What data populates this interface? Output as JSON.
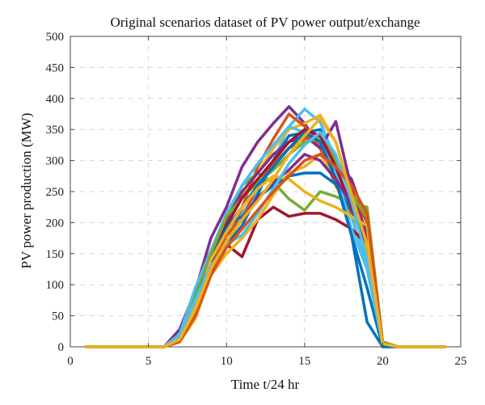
{
  "chart_data": {
    "type": "line",
    "title": "Original scenarios dataset of PV power output/exchange",
    "xlabel": "Time t/24 hr",
    "ylabel": "PV power production (MW)",
    "xlim": [
      0,
      25
    ],
    "ylim": [
      0,
      500
    ],
    "x_ticks": [
      0,
      5,
      10,
      15,
      20,
      25
    ],
    "y_ticks": [
      0,
      50,
      100,
      150,
      200,
      250,
      300,
      350,
      400,
      450,
      500
    ],
    "grid": true,
    "legend": "none",
    "x": [
      1,
      2,
      3,
      4,
      5,
      6,
      7,
      8,
      9,
      10,
      11,
      12,
      13,
      14,
      15,
      16,
      17,
      18,
      19,
      20,
      21,
      22,
      23,
      24
    ],
    "series": [
      {
        "color": "#7e2f8e",
        "values": [
          0,
          0,
          0,
          0,
          0,
          0,
          28,
          90,
          175,
          225,
          290,
          330,
          360,
          387,
          360,
          320,
          300,
          270,
          200,
          5,
          0,
          0,
          0,
          0
        ]
      },
      {
        "color": "#4dbeee",
        "values": [
          0,
          0,
          0,
          0,
          0,
          0,
          20,
          80,
          140,
          180,
          215,
          250,
          300,
          355,
          383,
          362,
          300,
          210,
          130,
          5,
          0,
          0,
          0,
          0
        ]
      },
      {
        "color": "#edb120",
        "values": [
          0,
          0,
          0,
          0,
          0,
          0,
          10,
          60,
          130,
          195,
          245,
          280,
          320,
          350,
          360,
          373,
          330,
          245,
          150,
          8,
          0,
          0,
          0,
          0
        ]
      },
      {
        "color": "#0072bd",
        "values": [
          0,
          0,
          0,
          0,
          0,
          0,
          18,
          85,
          140,
          165,
          195,
          245,
          300,
          340,
          345,
          350,
          268,
          180,
          95,
          0,
          0,
          0,
          0,
          0
        ]
      },
      {
        "color": "#d95319",
        "values": [
          0,
          0,
          0,
          0,
          0,
          0,
          12,
          55,
          125,
          165,
          225,
          290,
          335,
          375,
          355,
          320,
          260,
          215,
          170,
          5,
          0,
          0,
          0,
          0
        ]
      },
      {
        "color": "#77ac30",
        "values": [
          0,
          0,
          0,
          0,
          0,
          0,
          15,
          70,
          150,
          205,
          260,
          280,
          265,
          238,
          220,
          250,
          242,
          230,
          225,
          8,
          0,
          0,
          0,
          0
        ]
      },
      {
        "color": "#a2142f",
        "values": [
          0,
          0,
          0,
          0,
          0,
          0,
          10,
          50,
          120,
          165,
          145,
          205,
          225,
          210,
          215,
          215,
          205,
          190,
          165,
          5,
          0,
          0,
          0,
          0
        ]
      },
      {
        "color": "#7e2f8e",
        "values": [
          0,
          0,
          0,
          0,
          0,
          0,
          15,
          75,
          145,
          205,
          250,
          280,
          310,
          330,
          340,
          320,
          363,
          255,
          180,
          5,
          0,
          0,
          0,
          0
        ]
      },
      {
        "color": "#edb120",
        "values": [
          0,
          0,
          0,
          0,
          0,
          0,
          8,
          45,
          115,
          150,
          175,
          205,
          245,
          280,
          290,
          310,
          275,
          220,
          155,
          5,
          0,
          0,
          0,
          0
        ]
      },
      {
        "color": "#0072bd",
        "values": [
          0,
          0,
          0,
          0,
          0,
          0,
          12,
          70,
          135,
          195,
          210,
          240,
          260,
          275,
          280,
          280,
          262,
          220,
          165,
          5,
          0,
          0,
          0,
          0
        ]
      },
      {
        "color": "#4dbeee",
        "values": [
          0,
          0,
          0,
          0,
          0,
          0,
          20,
          95,
          155,
          215,
          260,
          295,
          325,
          355,
          345,
          330,
          285,
          190,
          125,
          5,
          0,
          0,
          0,
          0
        ]
      },
      {
        "color": "#d95319",
        "values": [
          0,
          0,
          0,
          0,
          0,
          0,
          10,
          55,
          130,
          180,
          205,
          260,
          295,
          320,
          335,
          340,
          300,
          250,
          200,
          5,
          0,
          0,
          0,
          0
        ]
      },
      {
        "color": "#77ac30",
        "values": [
          0,
          0,
          0,
          0,
          0,
          0,
          15,
          80,
          150,
          210,
          240,
          265,
          285,
          310,
          330,
          335,
          300,
          245,
          210,
          8,
          0,
          0,
          0,
          0
        ]
      },
      {
        "color": "#a2142f",
        "values": [
          0,
          0,
          0,
          0,
          0,
          0,
          12,
          60,
          135,
          195,
          240,
          270,
          300,
          330,
          350,
          340,
          290,
          225,
          165,
          5,
          0,
          0,
          0,
          0
        ]
      },
      {
        "color": "#0072bd",
        "values": [
          0,
          0,
          0,
          0,
          0,
          0,
          15,
          70,
          140,
          190,
          225,
          260,
          290,
          320,
          345,
          330,
          270,
          180,
          40,
          0,
          0,
          0,
          0,
          0
        ]
      },
      {
        "color": "#7e2f8e",
        "values": [
          0,
          0,
          0,
          0,
          0,
          0,
          10,
          55,
          125,
          170,
          205,
          240,
          265,
          285,
          310,
          300,
          270,
          230,
          190,
          5,
          0,
          0,
          0,
          0
        ]
      },
      {
        "color": "#edb120",
        "values": [
          0,
          0,
          0,
          0,
          0,
          0,
          15,
          65,
          140,
          185,
          225,
          255,
          275,
          270,
          250,
          235,
          225,
          210,
          195,
          5,
          0,
          0,
          0,
          0
        ]
      },
      {
        "color": "#4dbeee",
        "values": [
          0,
          0,
          0,
          0,
          0,
          0,
          18,
          75,
          130,
          165,
          180,
          215,
          255,
          295,
          325,
          345,
          310,
          235,
          140,
          5,
          0,
          0,
          0,
          0
        ]
      },
      {
        "color": "#d95319",
        "values": [
          0,
          0,
          0,
          0,
          0,
          0,
          8,
          50,
          115,
          160,
          190,
          220,
          250,
          275,
          300,
          310,
          290,
          260,
          215,
          5,
          0,
          0,
          0,
          0
        ]
      },
      {
        "color": "#edb120",
        "values": [
          0,
          0,
          0,
          0,
          0,
          0,
          12,
          60,
          125,
          170,
          205,
          235,
          270,
          310,
          340,
          368,
          330,
          245,
          165,
          5,
          0,
          0,
          0,
          0
        ]
      }
    ]
  }
}
